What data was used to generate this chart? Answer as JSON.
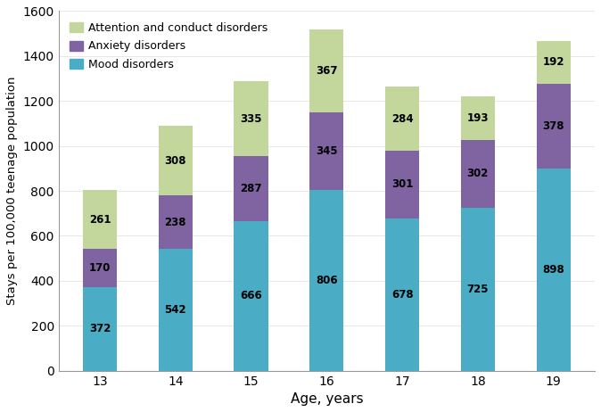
{
  "ages": [
    "13",
    "14",
    "15",
    "16",
    "17",
    "18",
    "19"
  ],
  "mood_disorders": [
    372,
    542,
    666,
    806,
    678,
    725,
    898
  ],
  "anxiety_disorders": [
    170,
    238,
    287,
    345,
    301,
    302,
    378
  ],
  "attention_conduct_disorders": [
    261,
    308,
    335,
    367,
    284,
    193,
    192
  ],
  "mood_color": "#4bacc6",
  "anxiety_color": "#8064a2",
  "attention_color": "#c3d69b",
  "xlabel": "Age, years",
  "ylabel": "Stays per 100,000 teenage population",
  "ylim": [
    0,
    1600
  ],
  "yticks": [
    0,
    200,
    400,
    600,
    800,
    1000,
    1200,
    1400,
    1600
  ],
  "legend_labels": [
    "Attention and conduct disorders",
    "Anxiety disorders",
    "Mood disorders"
  ],
  "bar_width": 0.45
}
